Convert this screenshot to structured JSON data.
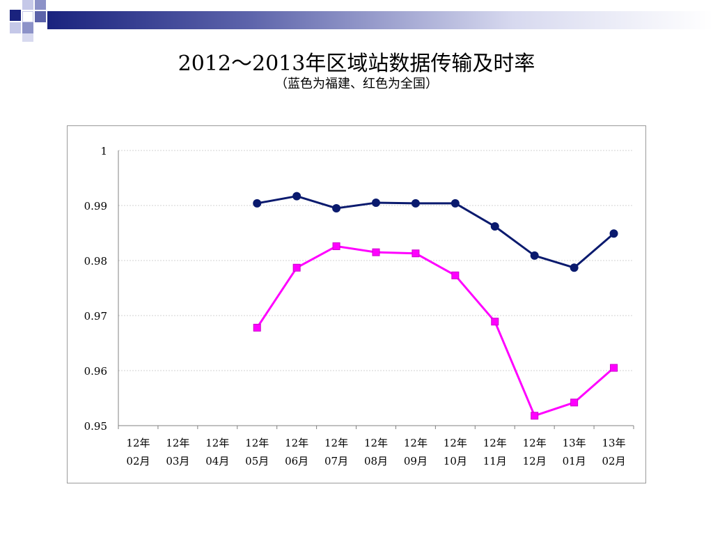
{
  "title": "2012～2013年区域站数据传输及时率",
  "subtitle": "（蓝色为福建、红色为全国）",
  "colors": {
    "fujian": "#0a1a6e",
    "national": "#ff00ff",
    "header_gradient_start": "#1a237e",
    "header_gradient_end": "#ffffff"
  },
  "chart_data": {
    "type": "line",
    "title": "",
    "xlabel": "",
    "ylabel": "",
    "ylim": [
      0.95,
      1.0
    ],
    "yticks": [
      0.95,
      0.96,
      0.97,
      0.98,
      0.99,
      1
    ],
    "ytick_labels": [
      "0.95",
      "0.96",
      "0.97",
      "0.98",
      "0.99",
      "1"
    ],
    "grid": true,
    "categories": [
      [
        "12年",
        "02月"
      ],
      [
        "12年",
        "03月"
      ],
      [
        "12年",
        "04月"
      ],
      [
        "12年",
        "05月"
      ],
      [
        "12年",
        "06月"
      ],
      [
        "12年",
        "07月"
      ],
      [
        "12年",
        "08月"
      ],
      [
        "12年",
        "09月"
      ],
      [
        "12年",
        "10月"
      ],
      [
        "12年",
        "11月"
      ],
      [
        "12年",
        "12月"
      ],
      [
        "13年",
        "01月"
      ],
      [
        "13年",
        "02月"
      ]
    ],
    "series": [
      {
        "color": "#0a1a6e",
        "marker": "circle",
        "values": [
          null,
          null,
          null,
          0.9904,
          0.9917,
          0.9895,
          0.9905,
          0.9904,
          0.9904,
          0.9862,
          0.9809,
          0.9787,
          0.9849
        ]
      },
      {
        "color": "#ff00ff",
        "marker": "square",
        "values": [
          null,
          null,
          null,
          0.9678,
          0.9787,
          0.9826,
          0.9815,
          0.9813,
          0.9773,
          0.9689,
          0.9518,
          0.9542,
          0.9605
        ]
      }
    ]
  }
}
